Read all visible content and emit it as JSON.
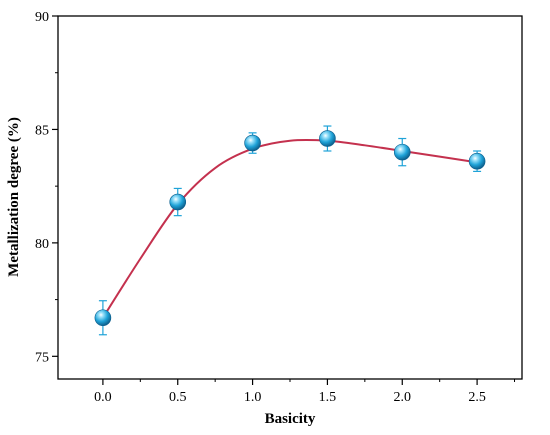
{
  "chart_data": {
    "type": "scatter",
    "xlabel": "Basicity",
    "ylabel": "Metallization degree (%)",
    "xlim": [
      -0.3,
      2.8
    ],
    "ylim": [
      74,
      90
    ],
    "xticks": [
      0.0,
      0.5,
      1.0,
      1.5,
      2.0,
      2.5
    ],
    "xtick_labels": [
      "0.0",
      "0.5",
      "1.0",
      "1.5",
      "2.0",
      "2.5"
    ],
    "yticks": [
      75,
      80,
      85,
      90
    ],
    "ytick_labels": [
      "75",
      "80",
      "85",
      "90"
    ],
    "grid": false,
    "legend": "none",
    "series": [
      {
        "x": [
          0.0,
          0.5,
          1.0,
          1.5,
          2.0,
          2.5
        ],
        "y": [
          76.7,
          81.8,
          84.4,
          84.6,
          84.0,
          83.6
        ],
        "yerr": [
          0.75,
          0.6,
          0.45,
          0.55,
          0.6,
          0.45
        ],
        "marker": "sphere",
        "color": "#1fa3d8"
      }
    ],
    "fit_curve": {
      "color": "#c4314e",
      "x": [
        0.0,
        0.25,
        0.5,
        0.75,
        1.0,
        1.25,
        1.5,
        1.75,
        2.0,
        2.25,
        2.5
      ],
      "y": [
        76.7,
        79.3,
        81.7,
        83.3,
        84.15,
        84.5,
        84.5,
        84.3,
        84.05,
        83.8,
        83.55
      ]
    }
  }
}
